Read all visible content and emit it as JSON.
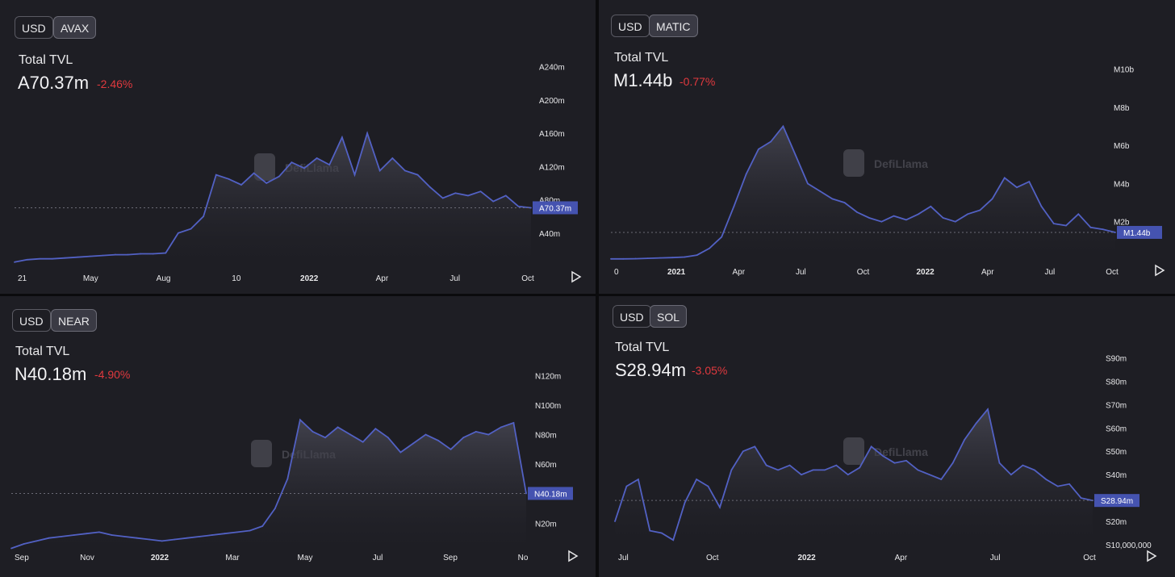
{
  "colors": {
    "line": "#5261c4",
    "label_bg": "#4553b0",
    "change": "#e0393e",
    "panel": "#1e1e24"
  },
  "panels": [
    {
      "currency_btn": "USD",
      "token_btn": "AVAX",
      "title": "Total TVL",
      "value": "A70.37m",
      "change": "-2.46%",
      "watermark": "DefiLlama",
      "play_icon": "play-icon"
    },
    {
      "currency_btn": "USD",
      "token_btn": "MATIC",
      "title": "Total TVL",
      "value": "M1.44b",
      "change": "-0.77%",
      "watermark": "DefiLlama",
      "play_icon": "play-icon"
    },
    {
      "currency_btn": "USD",
      "token_btn": "NEAR",
      "title": "Total TVL",
      "value": "N40.18m",
      "change": "-4.90%",
      "watermark": "DefiLlama",
      "play_icon": "play-icon"
    },
    {
      "currency_btn": "USD",
      "token_btn": "SOL",
      "title": "Total TVL",
      "value": "S28.94m",
      "change": "-3.05%",
      "watermark": "DefiLlama",
      "play_icon": "play-icon"
    }
  ],
  "chart_data": [
    {
      "type": "area",
      "series": [
        {
          "values": [
            5,
            8,
            9,
            9,
            10,
            11,
            12,
            13,
            14,
            14,
            15,
            15,
            16,
            40,
            45,
            60,
            110,
            105,
            98,
            112,
            100,
            108,
            125,
            118,
            130,
            122,
            155,
            110,
            160,
            115,
            130,
            115,
            110,
            95,
            82,
            88,
            85,
            90,
            78,
            85,
            72,
            70.37
          ]
        }
      ],
      "xticks": [
        "21",
        "May",
        "Aug",
        "10",
        "2022",
        "Apr",
        "Jul",
        "Oct"
      ],
      "yticks": [
        {
          "v": 240,
          "l": "A240m"
        },
        {
          "v": 200,
          "l": "A200m"
        },
        {
          "v": 160,
          "l": "A160m"
        },
        {
          "v": 120,
          "l": "A120m"
        },
        {
          "v": 80,
          "l": "A80m"
        },
        {
          "v": 40,
          "l": "A40m"
        }
      ],
      "ylim": [
        0,
        260
      ],
      "last_label": "A70.37m"
    },
    {
      "type": "area",
      "series": [
        {
          "values": [
            0.05,
            0.05,
            0.06,
            0.08,
            0.1,
            0.12,
            0.15,
            0.25,
            0.6,
            1.2,
            2.8,
            4.5,
            5.8,
            6.2,
            7.0,
            5.5,
            4.0,
            3.6,
            3.2,
            3.0,
            2.5,
            2.2,
            2.0,
            2.3,
            2.1,
            2.4,
            2.8,
            2.2,
            2.0,
            2.4,
            2.6,
            3.2,
            4.3,
            3.8,
            4.1,
            2.8,
            1.9,
            1.8,
            2.4,
            1.7,
            1.6,
            1.44
          ]
        }
      ],
      "xticks": [
        "0",
        "2021",
        "Apr",
        "Jul",
        "Oct",
        "2022",
        "Apr",
        "Jul",
        "Oct"
      ],
      "yticks": [
        {
          "v": 10,
          "l": "M10b"
        },
        {
          "v": 8,
          "l": "M8b"
        },
        {
          "v": 6,
          "l": "M6b"
        },
        {
          "v": 4,
          "l": "M4b"
        },
        {
          "v": 2,
          "l": "M2b"
        }
      ],
      "ylim": [
        0,
        11
      ],
      "last_label": "M1.44b"
    },
    {
      "type": "area",
      "series": [
        {
          "values": [
            3,
            6,
            8,
            10,
            11,
            12,
            13,
            14,
            12,
            11,
            10,
            9,
            8,
            9,
            10,
            11,
            12,
            13,
            14,
            15,
            18,
            30,
            50,
            90,
            82,
            78,
            85,
            80,
            75,
            84,
            78,
            68,
            74,
            80,
            76,
            70,
            78,
            82,
            80,
            85,
            88,
            40.18
          ]
        }
      ],
      "xticks": [
        "Sep",
        "Nov",
        "2022",
        "Mar",
        "May",
        "Jul",
        "Sep",
        "No"
      ],
      "yticks": [
        {
          "v": 120,
          "l": "N120m"
        },
        {
          "v": 100,
          "l": "N100m"
        },
        {
          "v": 80,
          "l": "N80m"
        },
        {
          "v": 60,
          "l": "N60m"
        },
        {
          "v": 20,
          "l": "N20m"
        }
      ],
      "ylim": [
        0,
        130
      ],
      "last_label": "N40.18m"
    },
    {
      "type": "area",
      "series": [
        {
          "values": [
            20,
            35,
            38,
            16,
            15,
            12,
            28,
            38,
            35,
            26,
            42,
            50,
            52,
            44,
            42,
            44,
            40,
            42,
            42,
            44,
            40,
            43,
            52,
            48,
            45,
            46,
            42,
            40,
            38,
            45,
            55,
            62,
            68,
            45,
            40,
            44,
            42,
            38,
            35,
            36,
            30,
            28.94
          ]
        }
      ],
      "xticks": [
        "Jul",
        "Oct",
        "2022",
        "Apr",
        "Jul",
        "Oct"
      ],
      "yticks": [
        {
          "v": 90,
          "l": "S90m"
        },
        {
          "v": 80,
          "l": "S80m"
        },
        {
          "v": 70,
          "l": "S70m"
        },
        {
          "v": 60,
          "l": "S60m"
        },
        {
          "v": 50,
          "l": "S50m"
        },
        {
          "v": 40,
          "l": "S40m"
        },
        {
          "v": 20,
          "l": "S20m"
        },
        {
          "v": 10,
          "l": "S10,000,000"
        }
      ],
      "ylim": [
        10,
        95
      ],
      "last_label": "S28.94m"
    }
  ]
}
